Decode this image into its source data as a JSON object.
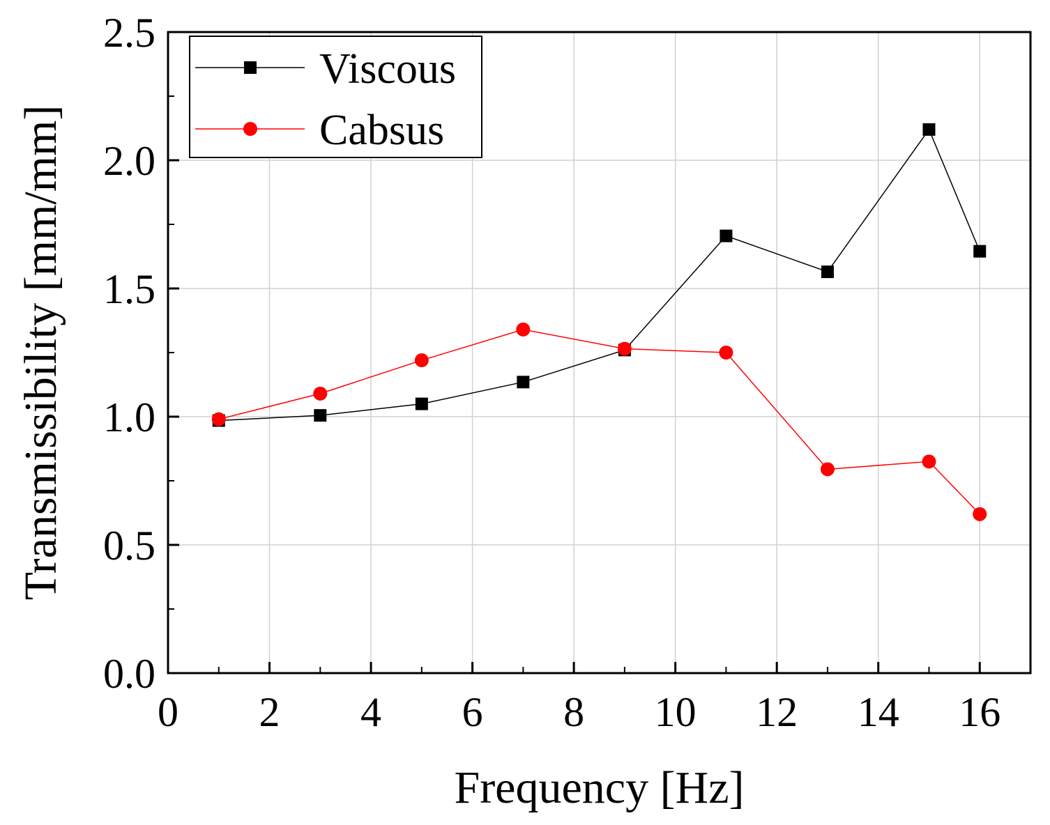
{
  "chart_data": {
    "type": "line",
    "xlabel": "Frequency [Hz]",
    "ylabel": "Transmissibility [mm/mm]",
    "xlim": [
      0,
      17
    ],
    "ylim": [
      0,
      2.5
    ],
    "xticks": [
      0,
      2,
      4,
      6,
      8,
      10,
      12,
      14,
      16
    ],
    "yticks": [
      0.0,
      0.5,
      1.0,
      1.5,
      2.0,
      2.5
    ],
    "xtick_labels": [
      "0",
      "2",
      "4",
      "6",
      "8",
      "10",
      "12",
      "14",
      "16"
    ],
    "ytick_labels": [
      "0.0",
      "0.5",
      "1.0",
      "1.5",
      "2.0",
      "2.5"
    ],
    "grid": true,
    "legend_position": "top-left",
    "series": [
      {
        "name": "Viscous",
        "color": "#000000",
        "marker": "square",
        "x": [
          1,
          3,
          5,
          7,
          9,
          11,
          13,
          15,
          16
        ],
        "y": [
          0.985,
          1.005,
          1.05,
          1.135,
          1.26,
          1.705,
          1.565,
          2.12,
          1.645
        ]
      },
      {
        "name": "Cabsus",
        "color": "#ff0000",
        "marker": "circle",
        "x": [
          1,
          3,
          5,
          7,
          9,
          11,
          13,
          15,
          16
        ],
        "y": [
          0.99,
          1.09,
          1.22,
          1.34,
          1.265,
          1.25,
          0.795,
          0.825,
          0.62
        ]
      }
    ]
  }
}
